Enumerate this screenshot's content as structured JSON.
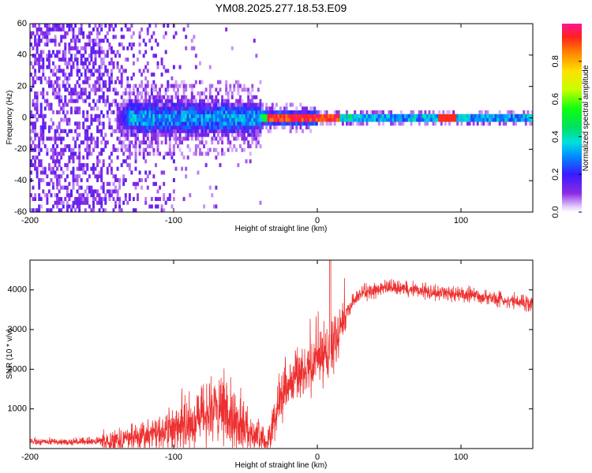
{
  "title": "YM08.2025.277.18.53.E09",
  "colors": {
    "snr_line": "#ee3030",
    "frame": "#000000"
  },
  "chart_data": [
    {
      "type": "heatmap",
      "name": "spectrogram",
      "xlabel": "Height of straight line (km)",
      "ylabel": "Frequency (Hz)",
      "xlim": [
        -200,
        150
      ],
      "ylim": [
        -60,
        60
      ],
      "xticks": [
        -200,
        -100,
        0,
        100
      ],
      "xtick_labels": [
        "-200",
        "-100",
        "0",
        "100"
      ],
      "yticks": [
        -60,
        -40,
        -20,
        0,
        20,
        40,
        60
      ],
      "ytick_labels": [
        "-60",
        "-40",
        "-20",
        "0",
        "20",
        "40",
        "60"
      ],
      "colorbar": {
        "label": "Normalized spectral amplitude",
        "range": [
          0,
          1
        ],
        "ticks": [
          0.0,
          0.2,
          0.4,
          0.6,
          0.8
        ],
        "tick_labels": [
          "0.0",
          "0.2",
          "0.4",
          "0.6",
          "0.8"
        ]
      },
      "features": {
        "noise_region_x": [
          -200,
          -95
        ],
        "sparse_noise_x": [
          -95,
          -35
        ],
        "signal_center_freq": 0,
        "peak_amplitude": 1.0
      }
    },
    {
      "type": "line",
      "name": "snr",
      "xlabel": "Height of straight line (km)",
      "ylabel": "SNR (10 * v/v)",
      "xlim": [
        -200,
        150
      ],
      "ylim": [
        0,
        4750
      ],
      "xticks": [
        -200,
        -100,
        0,
        100
      ],
      "xtick_labels": [
        "-200",
        "-100",
        "0",
        "100"
      ],
      "yticks": [
        1000,
        2000,
        3000,
        4000
      ],
      "ytick_labels": [
        "1000",
        "2000",
        "3000",
        "4000"
      ],
      "series": [
        {
          "name": "SNR",
          "color": "#ee3030",
          "x": [
            -200,
            -180,
            -160,
            -150,
            -140,
            -120,
            -100,
            -90,
            -80,
            -70,
            -60,
            -50,
            -42,
            -35,
            -30,
            -25,
            -20,
            -15,
            -10,
            -5,
            0,
            5,
            10,
            15,
            20,
            25,
            30,
            40,
            50,
            60,
            70,
            80,
            90,
            100,
            110,
            120,
            130,
            140,
            150
          ],
          "values": [
            170,
            170,
            175,
            185,
            230,
            320,
            520,
            650,
            800,
            900,
            750,
            550,
            350,
            150,
            750,
            1300,
            1650,
            1800,
            1950,
            2050,
            2150,
            2350,
            2600,
            2950,
            3400,
            3700,
            3900,
            4000,
            4050,
            4050,
            4000,
            3950,
            3900,
            3900,
            3850,
            3800,
            3750,
            3700,
            3650
          ]
        }
      ]
    }
  ]
}
